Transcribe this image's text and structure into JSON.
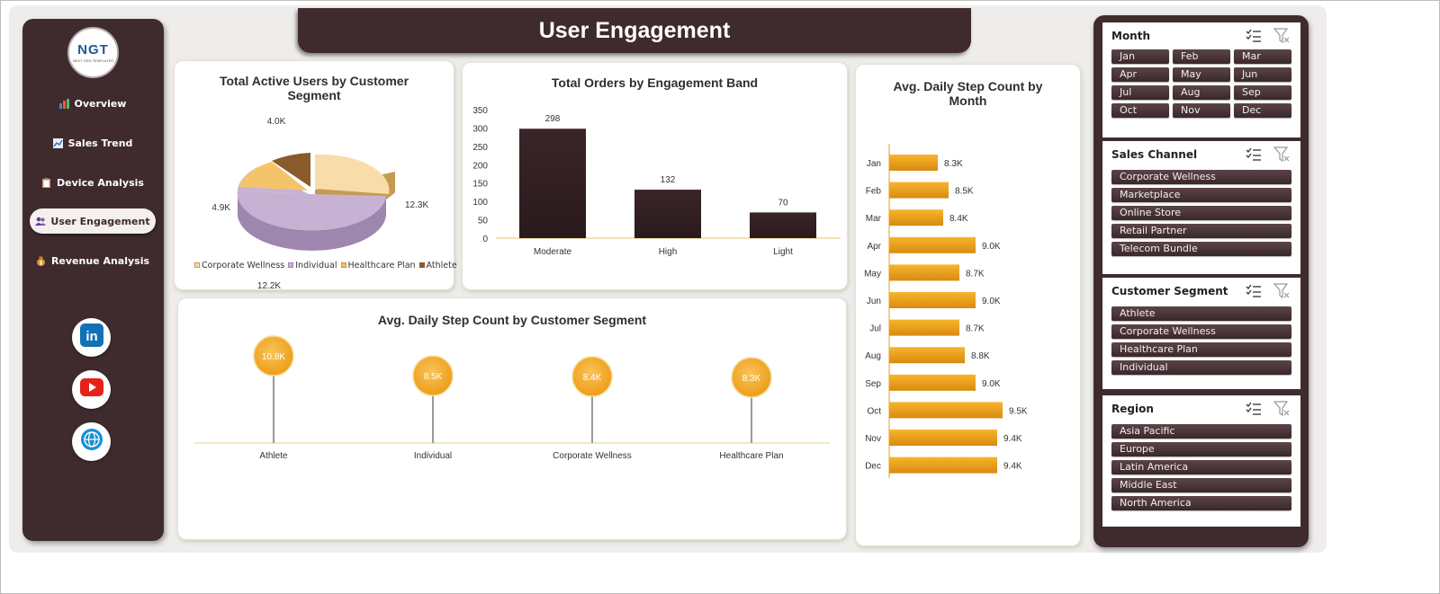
{
  "title": "User Engagement",
  "logo": {
    "text": "NGT",
    "subtext": "NEXT GEN TEMPLATES"
  },
  "nav": [
    {
      "label": "Overview",
      "icon": "bar-chart-icon"
    },
    {
      "label": "Sales Trend",
      "icon": "trend-chart-icon"
    },
    {
      "label": "Device Analysis",
      "icon": "clipboard-icon"
    },
    {
      "label": "User Engagement",
      "icon": "users-icon",
      "active": true
    },
    {
      "label": "Revenue Analysis",
      "icon": "money-bag-icon"
    }
  ],
  "social": [
    "linkedin-icon",
    "youtube-icon",
    "globe-icon"
  ],
  "colors": {
    "dark": "#3f2b2d",
    "accent": "#f2a51c",
    "bar": "#3a2528"
  },
  "charts": {
    "pie": {
      "title": "Total Active Users by Customer Segment",
      "labels": [
        "12.3K",
        "12.2K",
        "4.9K",
        "4.0K"
      ],
      "legend": [
        "Corporate Wellness",
        "Individual",
        "Healthcare Plan",
        "Athlete"
      ]
    },
    "orders": {
      "title": "Total Orders by Engagement Band",
      "value_labels": [
        "298",
        "132",
        "70"
      ],
      "ticks": [
        "350",
        "300",
        "250",
        "200",
        "150",
        "100",
        "50",
        "0"
      ]
    },
    "monthly": {
      "title": "Avg. Daily Step Count by Month",
      "value_labels": [
        "8.3K",
        "8.5K",
        "8.4K",
        "9.0K",
        "8.7K",
        "9.0K",
        "8.7K",
        "8.8K",
        "9.0K",
        "9.5K",
        "9.4K",
        "9.4K"
      ]
    },
    "segment": {
      "title": "Avg. Daily Step Count by Customer Segment",
      "value_labels": [
        "10.8K",
        "8.5K",
        "8.4K",
        "8.3K"
      ]
    }
  },
  "chart_data": [
    {
      "type": "pie",
      "title": "Total Active Users by Customer Segment",
      "categories": [
        "Corporate Wellness",
        "Individual",
        "Healthcare Plan",
        "Athlete"
      ],
      "values": [
        12300,
        12200,
        4900,
        4000
      ],
      "colors": [
        "#f8dcaa",
        "#c8b2d4",
        "#f5c46a",
        "#8a5a2b"
      ],
      "legend_position": "bottom"
    },
    {
      "type": "bar",
      "title": "Total Orders by Engagement Band",
      "categories": [
        "Moderate",
        "High",
        "Light"
      ],
      "values": [
        298,
        132,
        70
      ],
      "ylim": [
        0,
        350
      ],
      "grid": false
    },
    {
      "type": "bar",
      "orientation": "horizontal",
      "title": "Avg. Daily Step Count by Month",
      "categories": [
        "Jan",
        "Feb",
        "Mar",
        "Apr",
        "May",
        "Jun",
        "Jul",
        "Aug",
        "Sep",
        "Oct",
        "Nov",
        "Dec"
      ],
      "values": [
        8300,
        8500,
        8400,
        9000,
        8700,
        9000,
        8700,
        8800,
        9000,
        9500,
        9400,
        9400
      ],
      "xlim": [
        7400,
        9500
      ]
    },
    {
      "type": "lollipop",
      "title": "Avg. Daily Step Count by Customer Segment",
      "categories": [
        "Athlete",
        "Individual",
        "Corporate Wellness",
        "Healthcare Plan"
      ],
      "values": [
        10800,
        8500,
        8400,
        8300
      ]
    }
  ],
  "slicers": [
    {
      "title": "Month",
      "items": [
        "Jan",
        "Feb",
        "Mar",
        "Apr",
        "May",
        "Jun",
        "Jul",
        "Aug",
        "Sep",
        "Oct",
        "Nov",
        "Dec"
      ],
      "columns": 3
    },
    {
      "title": "Sales Channel",
      "items": [
        "Corporate Wellness",
        "Marketplace",
        "Online Store",
        "Retail Partner",
        "Telecom Bundle"
      ],
      "columns": 1
    },
    {
      "title": "Customer Segment",
      "items": [
        "Athlete",
        "Corporate Wellness",
        "Healthcare Plan",
        "Individual"
      ],
      "columns": 1
    },
    {
      "title": "Region",
      "items": [
        "Asia Pacific",
        "Europe",
        "Latin America",
        "Middle East",
        "North America"
      ],
      "columns": 1
    }
  ]
}
